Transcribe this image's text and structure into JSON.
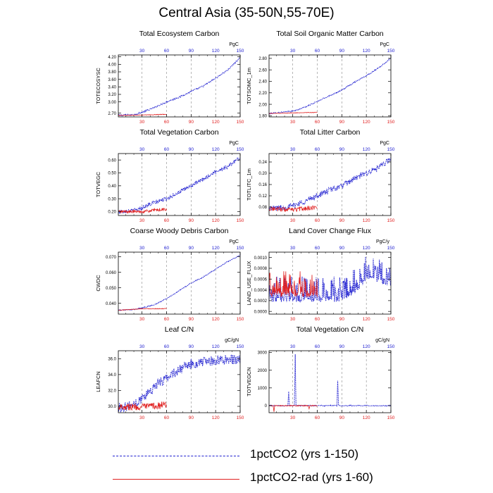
{
  "title": "Central Asia (35-50N,55-70E)",
  "colors": {
    "series1": "#2020d0",
    "series2": "#e02020",
    "axis": "#000000",
    "topticks": "#2020d0",
    "bottomticks": "#e02020"
  },
  "legend": [
    {
      "label": "1pctCO2 (yrs 1-150)",
      "style": "dashed",
      "color": "#2020d0"
    },
    {
      "label": "1pctCO2-rad (yrs 1-60)",
      "style": "solid",
      "color": "#e02020"
    }
  ],
  "chart_data": [
    {
      "type": "line",
      "title": "Total Ecosystem Carbon",
      "ylabel": "TOTECOSYSC",
      "units": "PgC",
      "xlim": [
        1,
        150
      ],
      "xticks": [
        30,
        60,
        90,
        120,
        150
      ],
      "ylim": [
        2.6,
        4.25
      ],
      "yticks": [
        "2.70",
        "3.00",
        "3.20",
        "3.40",
        "3.60",
        "3.80",
        "4.00",
        "4.20"
      ],
      "ytick_values": [
        2.7,
        3.0,
        3.2,
        3.4,
        3.6,
        3.8,
        4.0,
        4.2
      ],
      "series": [
        {
          "id": "s1",
          "x_end": 150,
          "points": [
            [
              1,
              2.64
            ],
            [
              20,
              2.66
            ],
            [
              30,
              2.72
            ],
            [
              45,
              2.85
            ],
            [
              60,
              3.0
            ],
            [
              75,
              3.12
            ],
            [
              90,
              3.28
            ],
            [
              105,
              3.42
            ],
            [
              120,
              3.63
            ],
            [
              135,
              3.85
            ],
            [
              150,
              4.18
            ]
          ],
          "noise": 0.02
        },
        {
          "id": "s2",
          "x_end": 60,
          "points": [
            [
              1,
              2.64
            ],
            [
              30,
              2.65
            ],
            [
              60,
              2.67
            ]
          ],
          "noise": 0.008
        }
      ]
    },
    {
      "type": "line",
      "title": "Total Soil Organic Matter Carbon",
      "ylabel": "TOTSOMC_1m",
      "units": "PgC",
      "xlim": [
        1,
        150
      ],
      "xticks": [
        30,
        60,
        90,
        120,
        150
      ],
      "ylim": [
        1.78,
        2.86
      ],
      "yticks": [
        "1.80",
        "2.00",
        "2.20",
        "2.40",
        "2.60",
        "2.80"
      ],
      "ytick_values": [
        1.8,
        2.0,
        2.2,
        2.4,
        2.6,
        2.8
      ],
      "series": [
        {
          "id": "s1",
          "x_end": 150,
          "points": [
            [
              1,
              1.84
            ],
            [
              30,
              1.88
            ],
            [
              45,
              1.95
            ],
            [
              60,
              2.05
            ],
            [
              75,
              2.15
            ],
            [
              90,
              2.25
            ],
            [
              105,
              2.38
            ],
            [
              120,
              2.5
            ],
            [
              135,
              2.63
            ],
            [
              150,
              2.8
            ]
          ],
          "noise": 0.01
        },
        {
          "id": "s2",
          "x_end": 60,
          "points": [
            [
              1,
              1.84
            ],
            [
              30,
              1.85
            ],
            [
              60,
              1.86
            ]
          ],
          "noise": 0.004
        }
      ]
    },
    {
      "type": "line",
      "title": "Total Vegetation Carbon",
      "ylabel": "TOTVEGC",
      "units": "PgC",
      "xlim": [
        1,
        150
      ],
      "xticks": [
        30,
        60,
        90,
        120,
        150
      ],
      "ylim": [
        0.17,
        0.65
      ],
      "yticks": [
        "0.20",
        "0.30",
        "0.40",
        "0.50",
        "0.60"
      ],
      "ytick_values": [
        0.2,
        0.3,
        0.4,
        0.5,
        0.6
      ],
      "series": [
        {
          "id": "s1",
          "x_end": 150,
          "points": [
            [
              1,
              0.2
            ],
            [
              20,
              0.21
            ],
            [
              30,
              0.23
            ],
            [
              45,
              0.27
            ],
            [
              60,
              0.3
            ],
            [
              75,
              0.35
            ],
            [
              90,
              0.4
            ],
            [
              105,
              0.45
            ],
            [
              120,
              0.51
            ],
            [
              135,
              0.55
            ],
            [
              150,
              0.62
            ]
          ],
          "noise": 0.015
        },
        {
          "id": "s2",
          "x_end": 60,
          "points": [
            [
              1,
              0.2
            ],
            [
              30,
              0.2
            ],
            [
              60,
              0.22
            ]
          ],
          "noise": 0.012
        }
      ]
    },
    {
      "type": "line",
      "title": "Total Litter Carbon",
      "ylabel": "TOTLITC_1m",
      "units": "PgC",
      "xlim": [
        1,
        150
      ],
      "xticks": [
        30,
        60,
        90,
        120,
        150
      ],
      "ylim": [
        0.05,
        0.27
      ],
      "yticks": [
        "0.08",
        "0.12",
        "0.16",
        "0.20",
        "0.24"
      ],
      "ytick_values": [
        0.08,
        0.12,
        0.16,
        0.2,
        0.24
      ],
      "series": [
        {
          "id": "s1",
          "x_end": 150,
          "points": [
            [
              1,
              0.075
            ],
            [
              20,
              0.078
            ],
            [
              30,
              0.085
            ],
            [
              45,
              0.1
            ],
            [
              60,
              0.12
            ],
            [
              75,
              0.14
            ],
            [
              90,
              0.155
            ],
            [
              105,
              0.18
            ],
            [
              120,
              0.2
            ],
            [
              135,
              0.22
            ],
            [
              150,
              0.25
            ]
          ],
          "noise": 0.01
        },
        {
          "id": "s2",
          "x_end": 60,
          "points": [
            [
              1,
              0.075
            ],
            [
              30,
              0.07
            ],
            [
              60,
              0.08
            ]
          ],
          "noise": 0.008
        }
      ]
    },
    {
      "type": "line",
      "title": "Coarse Woody Debris Carbon",
      "ylabel": "CWDC",
      "units": "PgC",
      "xlim": [
        1,
        150
      ],
      "xticks": [
        30,
        60,
        90,
        120,
        150
      ],
      "ylim": [
        0.033,
        0.073
      ],
      "yticks": [
        "0.040",
        "0.050",
        "0.060",
        "0.070"
      ],
      "ytick_values": [
        0.04,
        0.05,
        0.06,
        0.07
      ],
      "series": [
        {
          "id": "s1",
          "x_end": 150,
          "points": [
            [
              1,
              0.0355
            ],
            [
              20,
              0.036
            ],
            [
              30,
              0.037
            ],
            [
              45,
              0.039
            ],
            [
              60,
              0.043
            ],
            [
              75,
              0.048
            ],
            [
              90,
              0.053
            ],
            [
              105,
              0.057
            ],
            [
              120,
              0.062
            ],
            [
              135,
              0.067
            ],
            [
              150,
              0.071
            ]
          ],
          "noise": 0.0003
        },
        {
          "id": "s2",
          "x_end": 60,
          "points": [
            [
              1,
              0.0355
            ],
            [
              30,
              0.0365
            ],
            [
              60,
              0.0365
            ]
          ],
          "noise": 0.0002
        }
      ]
    },
    {
      "type": "line",
      "title": "Land Cover Change Flux",
      "ylabel": "LAND_USE_FLUX",
      "units": "PgC/y",
      "xlim": [
        1,
        150
      ],
      "xticks": [
        30,
        60,
        90,
        120,
        150
      ],
      "ylim": [
        -5e-05,
        0.0011
      ],
      "yticks": [
        "0.0000",
        "0.0002",
        "0.0004",
        "0.0006",
        "0.0008",
        "0.0010"
      ],
      "ytick_values": [
        0,
        0.0002,
        0.0004,
        0.0006,
        0.0008,
        0.001
      ],
      "series": [
        {
          "id": "s1",
          "x_end": 150,
          "points": [
            [
              1,
              0.0002
            ],
            [
              30,
              0.0002
            ],
            [
              60,
              0.0002
            ],
            [
              90,
              0.0002
            ],
            [
              110,
              0.0004
            ],
            [
              120,
              0.0006
            ],
            [
              150,
              0.0005
            ]
          ],
          "noise": 0.0003,
          "spiky": true
        },
        {
          "id": "s2",
          "x_end": 60,
          "points": [
            [
              1,
              0.0003
            ],
            [
              30,
              0.0003
            ],
            [
              60,
              0.0003
            ]
          ],
          "noise": 0.0003,
          "spiky": true
        }
      ]
    },
    {
      "type": "line",
      "title": "Leaf C/N",
      "ylabel": "LEAFCN",
      "units": "gC/gN",
      "xlim": [
        1,
        150
      ],
      "xticks": [
        30,
        60,
        90,
        120,
        150
      ],
      "ylim": [
        29.2,
        37.0
      ],
      "yticks": [
        "30.0",
        "32.0",
        "34.0",
        "36.0"
      ],
      "ytick_values": [
        30,
        32,
        34,
        36
      ],
      "series": [
        {
          "id": "s1",
          "x_end": 150,
          "points": [
            [
              1,
              29.8
            ],
            [
              20,
              30.2
            ],
            [
              30,
              31.0
            ],
            [
              45,
              32.5
            ],
            [
              60,
              33.6
            ],
            [
              75,
              34.6
            ],
            [
              90,
              35.3
            ],
            [
              105,
              35.6
            ],
            [
              120,
              35.8
            ],
            [
              135,
              35.9
            ],
            [
              150,
              35.9
            ]
          ],
          "noise": 0.6
        },
        {
          "id": "s2",
          "x_end": 60,
          "points": [
            [
              1,
              30.0
            ],
            [
              30,
              29.9
            ],
            [
              60,
              30.2
            ]
          ],
          "noise": 0.45
        }
      ]
    },
    {
      "type": "line",
      "title": "Total Vegetation C/N",
      "ylabel": "TOTVEGCN",
      "units": "gC/gN",
      "xlim": [
        1,
        150
      ],
      "xticks": [
        30,
        60,
        90,
        120,
        150
      ],
      "ylim": [
        -400,
        3100
      ],
      "yticks": [
        "0",
        "1000",
        "2000",
        "3000"
      ],
      "ytick_values": [
        0,
        1000,
        2000,
        3000
      ],
      "series": [
        {
          "id": "s1",
          "x_end": 150,
          "points": [
            [
              1,
              0
            ],
            [
              150,
              0
            ]
          ],
          "noise": 25,
          "spikes": [
            [
              25,
              800
            ],
            [
              33,
              2900
            ],
            [
              85,
              1400
            ]
          ]
        },
        {
          "id": "s2",
          "x_end": 60,
          "points": [
            [
              1,
              0
            ],
            [
              60,
              0
            ]
          ],
          "noise": 25,
          "spikes": [
            [
              7,
              -350
            ],
            [
              50,
              -180
            ]
          ]
        }
      ]
    }
  ]
}
